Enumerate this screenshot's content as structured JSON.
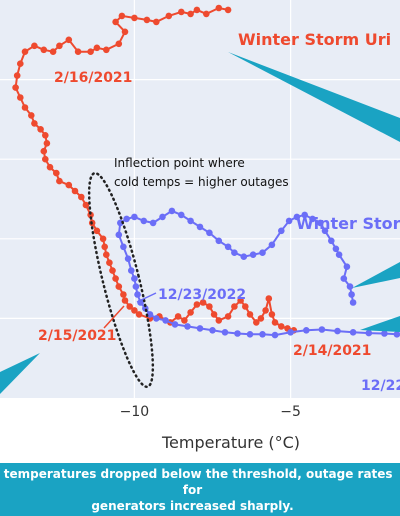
{
  "chart_data": {
    "type": "scatter",
    "xlabel": "Temperature (°C)",
    "x_ticks": [
      -10,
      -5
    ],
    "xlim": [
      -14.3,
      -1.5
    ],
    "ylim": [
      0,
      1
    ],
    "grid": true,
    "colors": {
      "uri": "#ee4a2f",
      "elliott": "#6b6ef7",
      "callout": "#1aa3c3",
      "plot_bg": "#e8edf6"
    },
    "series": [
      {
        "name": "Winter Storm Uri",
        "points": [
          [
            -7.0,
            0.975
          ],
          [
            -7.3,
            0.98
          ],
          [
            -7.7,
            0.965
          ],
          [
            -8.0,
            0.975
          ],
          [
            -8.2,
            0.965
          ],
          [
            -8.5,
            0.97
          ],
          [
            -8.9,
            0.96
          ],
          [
            -9.3,
            0.945
          ],
          [
            -9.6,
            0.95
          ],
          [
            -10.0,
            0.955
          ],
          [
            -10.4,
            0.96
          ],
          [
            -10.6,
            0.945
          ],
          [
            -10.3,
            0.92
          ],
          [
            -10.5,
            0.89
          ],
          [
            -10.9,
            0.875
          ],
          [
            -11.2,
            0.88
          ],
          [
            -11.4,
            0.87
          ],
          [
            -11.8,
            0.87
          ],
          [
            -12.1,
            0.9
          ],
          [
            -12.4,
            0.885
          ],
          [
            -12.6,
            0.87
          ],
          [
            -12.9,
            0.875
          ],
          [
            -13.2,
            0.885
          ],
          [
            -13.5,
            0.87
          ],
          [
            -13.65,
            0.84
          ],
          [
            -13.75,
            0.81
          ],
          [
            -13.8,
            0.78
          ],
          [
            -13.65,
            0.755
          ],
          [
            -13.5,
            0.73
          ],
          [
            -13.3,
            0.71
          ],
          [
            -13.2,
            0.69
          ],
          [
            -13.0,
            0.675
          ],
          [
            -12.85,
            0.66
          ],
          [
            -12.8,
            0.64
          ],
          [
            -12.9,
            0.62
          ],
          [
            -12.85,
            0.6
          ],
          [
            -12.7,
            0.58
          ],
          [
            -12.5,
            0.565
          ],
          [
            -12.4,
            0.545
          ],
          [
            -12.1,
            0.535
          ],
          [
            -11.9,
            0.52
          ],
          [
            -11.7,
            0.505
          ],
          [
            -11.55,
            0.485
          ],
          [
            -11.4,
            0.46
          ],
          [
            -11.35,
            0.44
          ],
          [
            -11.2,
            0.42
          ],
          [
            -11.0,
            0.4
          ],
          [
            -10.95,
            0.38
          ],
          [
            -10.9,
            0.36
          ],
          [
            -10.8,
            0.34
          ],
          [
            -10.7,
            0.32
          ],
          [
            -10.6,
            0.3
          ],
          [
            -10.5,
            0.28
          ],
          [
            -10.35,
            0.26
          ],
          [
            -10.3,
            0.245
          ],
          [
            -10.15,
            0.23
          ],
          [
            -10.0,
            0.22
          ],
          [
            -9.85,
            0.21
          ],
          [
            -9.5,
            0.2
          ],
          [
            -9.2,
            0.205
          ],
          [
            -8.85,
            0.19
          ],
          [
            -8.6,
            0.205
          ],
          [
            -8.4,
            0.195
          ],
          [
            -8.2,
            0.215
          ],
          [
            -8.0,
            0.235
          ],
          [
            -7.8,
            0.24
          ],
          [
            -7.6,
            0.23
          ],
          [
            -7.45,
            0.21
          ],
          [
            -7.3,
            0.195
          ],
          [
            -7.0,
            0.205
          ],
          [
            -6.8,
            0.23
          ],
          [
            -6.6,
            0.245
          ],
          [
            -6.45,
            0.23
          ],
          [
            -6.3,
            0.21
          ],
          [
            -6.1,
            0.19
          ],
          [
            -5.95,
            0.2
          ],
          [
            -5.8,
            0.22
          ],
          [
            -5.7,
            0.25
          ],
          [
            -5.6,
            0.21
          ],
          [
            -5.5,
            0.19
          ],
          [
            -5.3,
            0.18
          ],
          [
            -5.1,
            0.175
          ],
          [
            -4.9,
            0.17
          ]
        ],
        "labels": [
          "2/16/2021",
          "2/15/2021",
          "2/14/2021"
        ]
      },
      {
        "name": "Winter Storm Elliott",
        "label_display": "Winter Storm",
        "points": [
          [
            -3.0,
            0.24
          ],
          [
            -3.05,
            0.26
          ],
          [
            -3.1,
            0.28
          ],
          [
            -3.3,
            0.3
          ],
          [
            -3.2,
            0.33
          ],
          [
            -3.45,
            0.36
          ],
          [
            -3.55,
            0.375
          ],
          [
            -3.7,
            0.395
          ],
          [
            -3.9,
            0.42
          ],
          [
            -4.05,
            0.44
          ],
          [
            -4.3,
            0.45
          ],
          [
            -4.55,
            0.46
          ],
          [
            -4.8,
            0.455
          ],
          [
            -5.05,
            0.445
          ],
          [
            -5.3,
            0.42
          ],
          [
            -5.6,
            0.385
          ],
          [
            -5.9,
            0.365
          ],
          [
            -6.2,
            0.36
          ],
          [
            -6.5,
            0.355
          ],
          [
            -6.8,
            0.365
          ],
          [
            -7.0,
            0.38
          ],
          [
            -7.3,
            0.395
          ],
          [
            -7.6,
            0.415
          ],
          [
            -7.9,
            0.43
          ],
          [
            -8.2,
            0.445
          ],
          [
            -8.5,
            0.46
          ],
          [
            -8.8,
            0.47
          ],
          [
            -9.1,
            0.455
          ],
          [
            -9.4,
            0.44
          ],
          [
            -9.7,
            0.445
          ],
          [
            -10.0,
            0.455
          ],
          [
            -10.25,
            0.45
          ],
          [
            -10.45,
            0.44
          ],
          [
            -10.5,
            0.41
          ],
          [
            -10.35,
            0.38
          ],
          [
            -10.2,
            0.35
          ],
          [
            -10.1,
            0.32
          ],
          [
            -10.0,
            0.3
          ],
          [
            -9.95,
            0.28
          ],
          [
            -9.9,
            0.26
          ],
          [
            -9.8,
            0.24
          ],
          [
            -9.65,
            0.225
          ],
          [
            -9.5,
            0.21
          ],
          [
            -9.3,
            0.2
          ],
          [
            -9.0,
            0.195
          ],
          [
            -8.7,
            0.185
          ],
          [
            -8.3,
            0.18
          ],
          [
            -7.9,
            0.175
          ],
          [
            -7.5,
            0.17
          ],
          [
            -7.1,
            0.165
          ],
          [
            -6.7,
            0.162
          ],
          [
            -6.3,
            0.16
          ],
          [
            -5.9,
            0.16
          ],
          [
            -5.5,
            0.158
          ],
          [
            -5.0,
            0.165
          ],
          [
            -4.5,
            0.17
          ],
          [
            -4.0,
            0.172
          ],
          [
            -3.5,
            0.168
          ],
          [
            -3.0,
            0.165
          ],
          [
            -2.5,
            0.163
          ],
          [
            -2.0,
            0.162
          ],
          [
            -1.6,
            0.16
          ]
        ],
        "labels": [
          "12/23/2022",
          "12/22"
        ]
      }
    ],
    "annotations": {
      "inflection_line1": "Inflection point where",
      "inflection_line2": "cold temps = higher outages"
    }
  },
  "caption": {
    "line1": "s temperatures dropped below the threshold, outage rates for",
    "line2": "generators increased sharply."
  }
}
